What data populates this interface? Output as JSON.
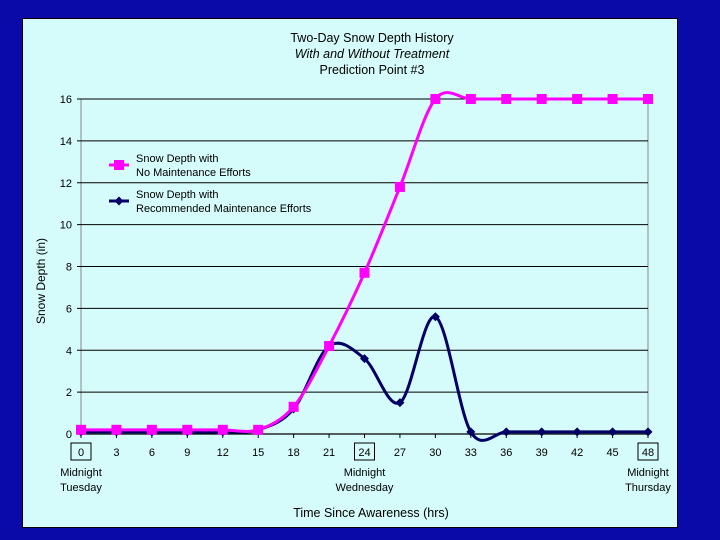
{
  "chart_data": {
    "type": "line",
    "title": "Two-Day Snow Depth History",
    "subtitle": "With and Without Treatment",
    "subtitle2": "Prediction Point #3",
    "ylabel": "Snow Depth (in)",
    "xlabel": "Time Since Awareness (hrs)",
    "x": [
      0,
      3,
      6,
      9,
      12,
      15,
      18,
      21,
      24,
      27,
      30,
      33,
      36,
      39,
      42,
      45,
      48
    ],
    "xlim": [
      0,
      48
    ],
    "ylim": [
      0,
      16
    ],
    "yticks": [
      0,
      2,
      4,
      6,
      8,
      10,
      12,
      14,
      16
    ],
    "xticks": [
      "0",
      "3",
      "6",
      "9",
      "12",
      "15",
      "18",
      "21",
      "24",
      "27",
      "30",
      "33",
      "36",
      "39",
      "42",
      "45",
      "48"
    ],
    "boxed_xticks": [
      "0",
      "24",
      "48"
    ],
    "grid": "horizontal",
    "legend_position": "upper-left",
    "time_labels": [
      {
        "x": 0,
        "line1": "Midnight",
        "line2": "Tuesday"
      },
      {
        "x": 24,
        "line1": "Midnight",
        "line2": "Wednesday"
      },
      {
        "x": 48,
        "line1": "Midnight",
        "line2": "Thursday"
      }
    ],
    "series": [
      {
        "name": "Snow Depth with No Maintenance Efforts",
        "legend_line1": "Snow Depth with",
        "legend_line2": "No Maintenance Efforts",
        "color": "#ff00ff",
        "marker": "square",
        "values": [
          0.2,
          0.2,
          0.2,
          0.2,
          0.2,
          0.2,
          1.3,
          4.2,
          7.7,
          11.8,
          16,
          16,
          16,
          16,
          16,
          16,
          16
        ]
      },
      {
        "name": "Snow Depth with Recommended Maintenance Efforts",
        "legend_line1": "Snow Depth with",
        "legend_line2": "Recommended Maintenance Efforts",
        "color": "#000066",
        "marker": "diamond",
        "values": [
          0.1,
          0.1,
          0.1,
          0.1,
          0.1,
          0.2,
          1.2,
          4.2,
          3.6,
          1.5,
          5.6,
          0.1,
          0.1,
          0.1,
          0.1,
          0.1,
          0.1
        ]
      }
    ]
  }
}
